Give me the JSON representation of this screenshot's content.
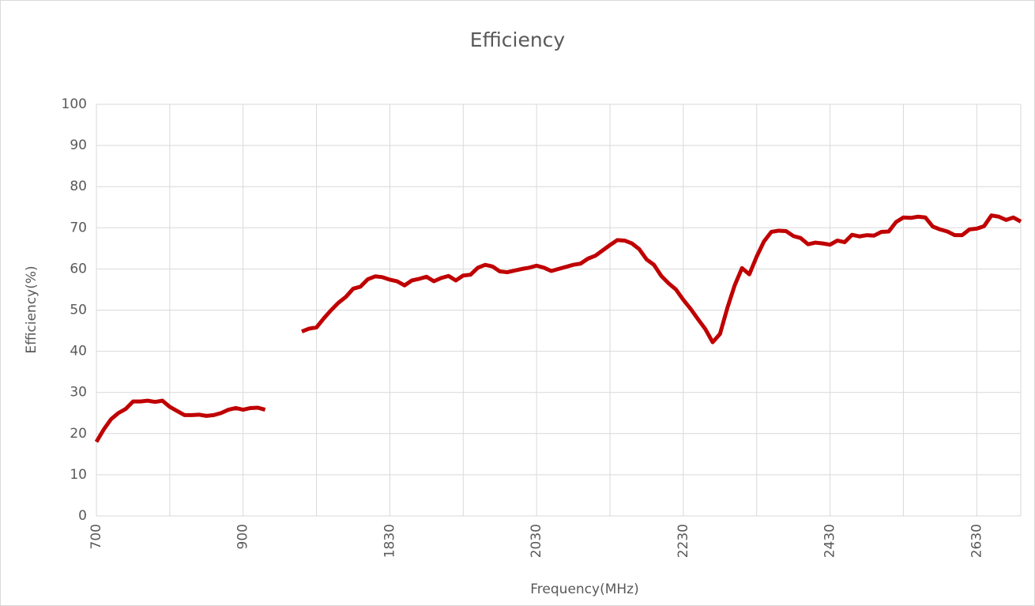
{
  "chart_data": {
    "type": "line",
    "title": "Efficiency",
    "x_label": "Frequency(MHz)",
    "y_label": "Efficiency(%)",
    "categories": [
      "700",
      null,
      null,
      null,
      null,
      null,
      null,
      null,
      null,
      null,
      null,
      null,
      null,
      null,
      null,
      null,
      null,
      null,
      null,
      null,
      "900",
      null,
      null,
      null,
      null,
      null,
      null,
      null,
      null,
      null,
      null,
      null,
      null,
      null,
      null,
      null,
      null,
      null,
      null,
      null,
      "1830",
      null,
      null,
      null,
      null,
      null,
      null,
      null,
      null,
      null,
      null,
      null,
      null,
      null,
      null,
      null,
      null,
      null,
      null,
      null,
      "2030",
      null,
      null,
      null,
      null,
      null,
      null,
      null,
      null,
      null,
      null,
      null,
      null,
      null,
      null,
      null,
      null,
      null,
      null,
      null,
      "2230",
      null,
      null,
      null,
      null,
      null,
      null,
      null,
      null,
      null,
      null,
      null,
      null,
      null,
      null,
      null,
      null,
      null,
      null,
      null,
      "2430",
      null,
      null,
      null,
      null,
      null,
      null,
      null,
      null,
      null,
      null,
      null,
      null,
      null,
      null,
      null,
      null,
      null,
      null,
      null,
      "2630",
      null,
      null,
      null,
      null,
      null,
      null
    ],
    "series": [
      {
        "name": "Efficiency",
        "color": "#c00000",
        "values": [
          18,
          21,
          23.5,
          25,
          26,
          27.8,
          27.8,
          28,
          27.7,
          28,
          26.5,
          25.5,
          24.5,
          24.5,
          24.6,
          24.3,
          24.5,
          25,
          25.8,
          26.2,
          25.8,
          26.2,
          26.3,
          25.8,
          null,
          null,
          null,
          null,
          44.8,
          45.5,
          45.8,
          48,
          50,
          51.8,
          53.2,
          55.2,
          55.7,
          57.5,
          58.2,
          58,
          57.4,
          57,
          56,
          57.2,
          57.6,
          58.1,
          57,
          57.8,
          58.3,
          57.2,
          58.4,
          58.6,
          60.3,
          61,
          60.6,
          59.4,
          59.2,
          59.6,
          60,
          60.3,
          60.8,
          60.3,
          59.5,
          60,
          60.5,
          61,
          61.3,
          62.5,
          63.2,
          64.5,
          65.8,
          67,
          66.9,
          66.2,
          64.8,
          62.3,
          61,
          58.3,
          56.5,
          55,
          52.5,
          50.3,
          47.8,
          45.4,
          42.2,
          44.2,
          50.5,
          56,
          60.2,
          58.7,
          63,
          66.7,
          69,
          69.3,
          69.2,
          68,
          67.5,
          66,
          66.4,
          66.2,
          65.9,
          66.9,
          66.5,
          68.3,
          67.9,
          68.2,
          68.1,
          69,
          69.1,
          71.4,
          72.5,
          72.4,
          72.7,
          72.5,
          70.3,
          69.6,
          69.1,
          68.2,
          68.2,
          69.6,
          69.8,
          70.4,
          73,
          72.7,
          71.9,
          72.5,
          71.5
        ]
      }
    ],
    "ylim": [
      0,
      100
    ],
    "yticks": [
      0,
      10,
      20,
      30,
      40,
      50,
      60,
      70,
      80,
      90,
      100
    ],
    "grid": true
  }
}
